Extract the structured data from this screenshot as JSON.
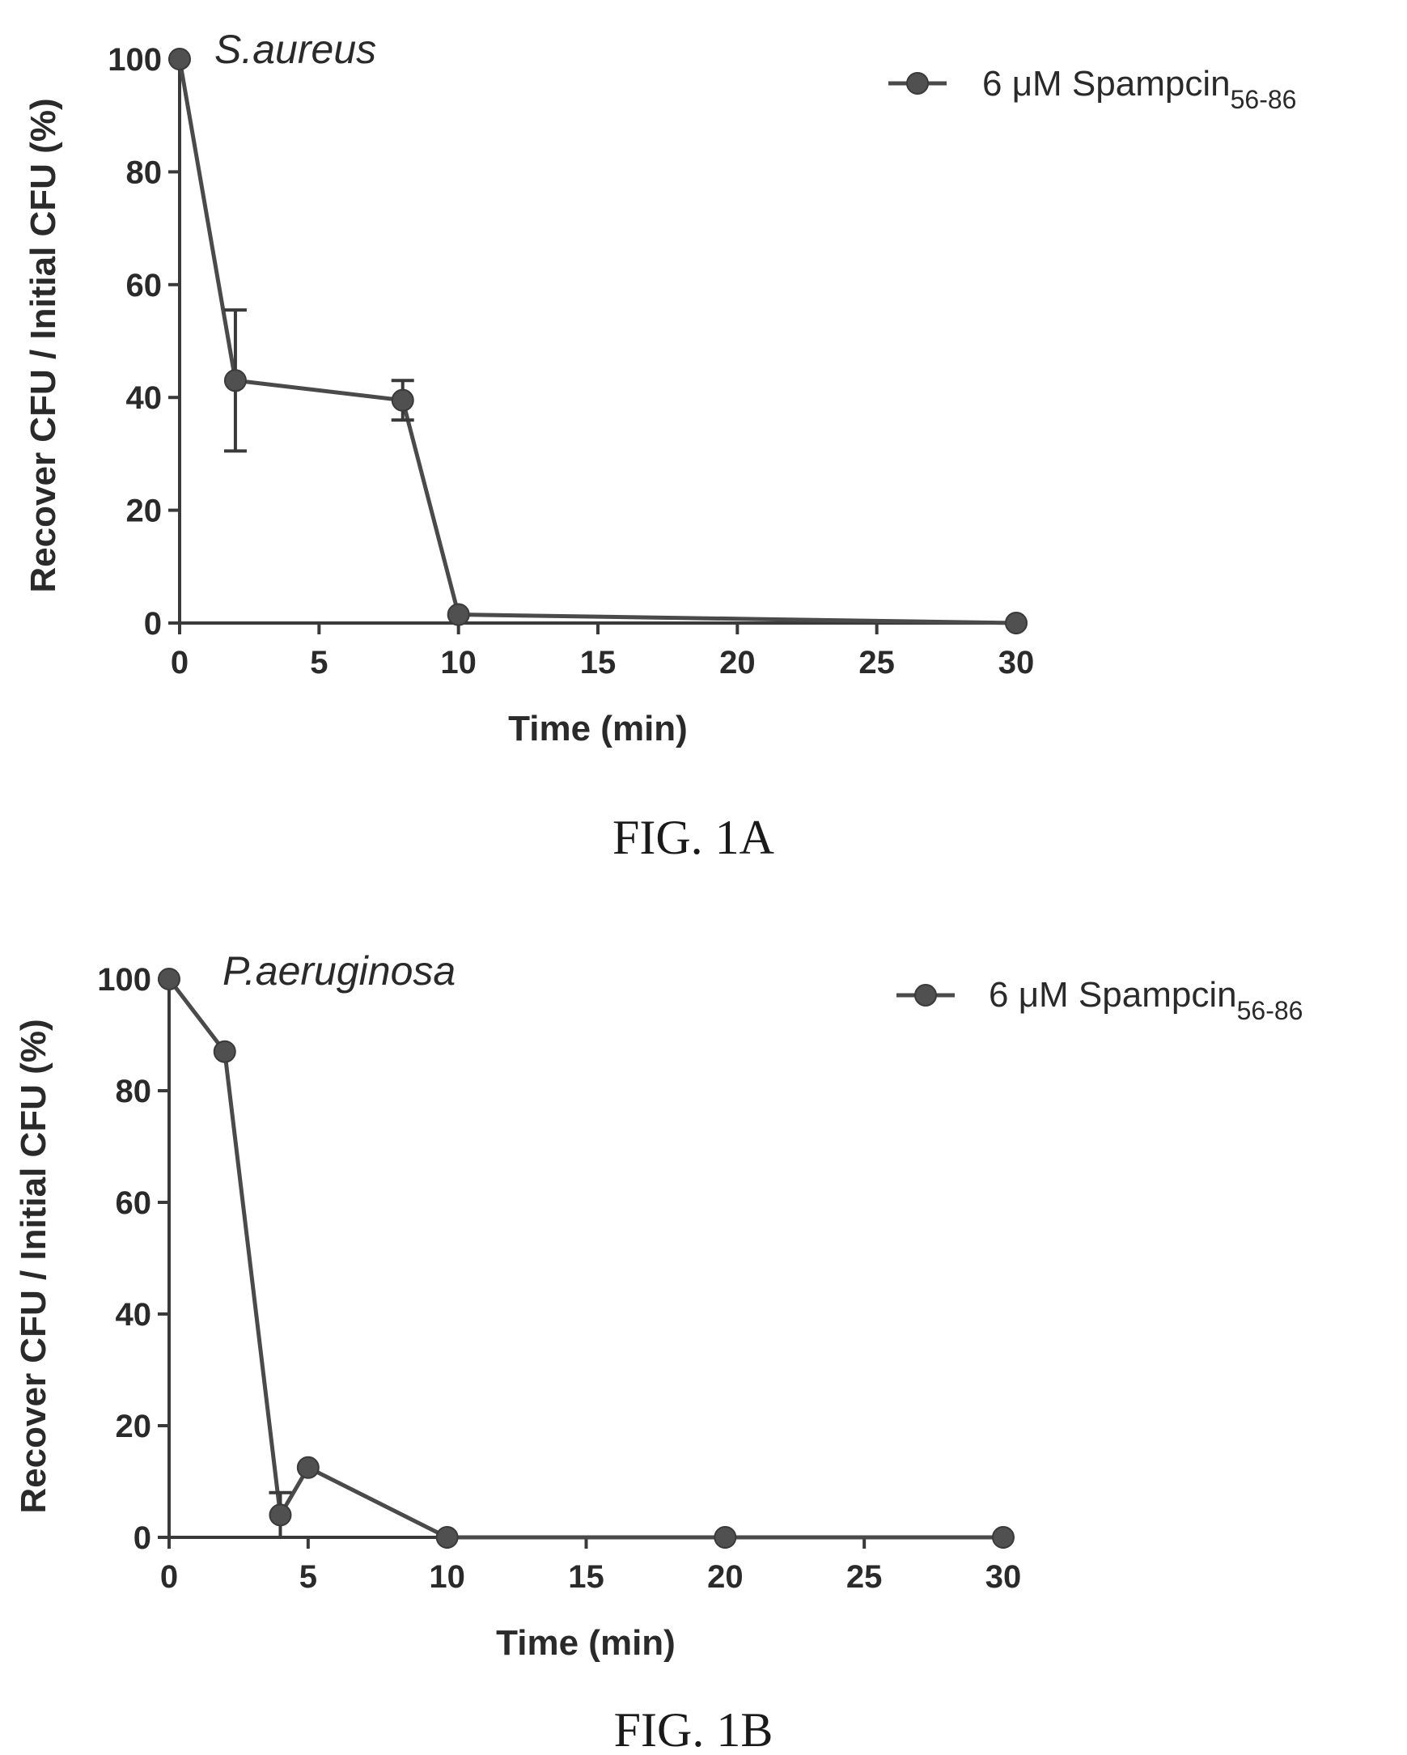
{
  "chart_data": [
    {
      "type": "line",
      "title": "S.aureus",
      "caption": "FIG. 1A",
      "xlabel": "Time (min)",
      "ylabel": "Recover CFU / Initial CFU (%)",
      "xlim": [
        0,
        30
      ],
      "ylim": [
        0,
        100
      ],
      "xticks": [
        0,
        5,
        10,
        15,
        20,
        25,
        30
      ],
      "yticks": [
        0,
        20,
        40,
        60,
        80,
        100
      ],
      "grid": false,
      "legend_position": "top-right",
      "series": [
        {
          "name": "6 μM Spampcin",
          "name_subscript": "56-86",
          "x": [
            0,
            2,
            8,
            10,
            30
          ],
          "y": [
            100,
            43,
            39.5,
            1.5,
            0
          ],
          "error": [
            0,
            12.5,
            3.5,
            0,
            0
          ]
        }
      ]
    },
    {
      "type": "line",
      "title": "P.aeruginosa",
      "caption": "FIG. 1B",
      "xlabel": "Time (min)",
      "ylabel": "Recover CFU / Initial CFU (%)",
      "xlim": [
        0,
        30
      ],
      "ylim": [
        0,
        100
      ],
      "xticks": [
        0,
        5,
        10,
        15,
        20,
        25,
        30
      ],
      "yticks": [
        0,
        20,
        40,
        60,
        80,
        100
      ],
      "grid": false,
      "legend_position": "top-right",
      "series": [
        {
          "name": "6 μM Spampcin",
          "name_subscript": "56-86",
          "x": [
            0,
            2,
            4,
            5,
            10,
            20,
            30
          ],
          "y": [
            100,
            87,
            4,
            12.5,
            0,
            0,
            0
          ],
          "error": [
            0,
            0,
            4,
            0,
            0,
            0,
            0
          ]
        }
      ]
    }
  ]
}
